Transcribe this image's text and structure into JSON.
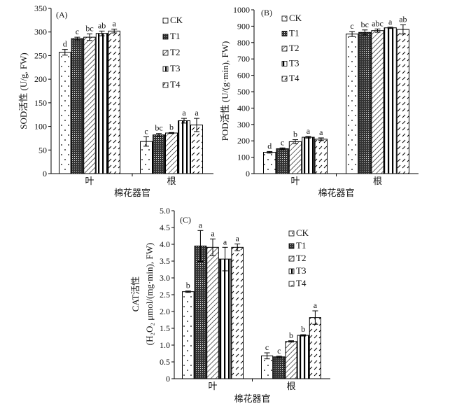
{
  "chart_data": [
    {
      "type": "bar",
      "panel_label": "(A)",
      "categories": [
        "叶",
        "根"
      ],
      "xlabel": "棉花器官",
      "ylabel": "SOD活性 (U/g, FW)",
      "ylim": [
        0,
        350
      ],
      "yticks": [
        0,
        50,
        100,
        150,
        200,
        250,
        300,
        350
      ],
      "legend_position": "top-right",
      "series": [
        {
          "name": "CK",
          "values": [
            257,
            68
          ],
          "errors": [
            6,
            10
          ],
          "letters": [
            "d",
            "c"
          ]
        },
        {
          "name": "T1",
          "values": [
            286,
            82
          ],
          "errors": [
            3,
            3
          ],
          "letters": [
            "c",
            "bc"
          ]
        },
        {
          "name": "T2",
          "values": [
            289,
            86
          ],
          "errors": [
            7,
            1
          ],
          "letters": [
            "bc",
            "b"
          ]
        },
        {
          "name": "T3",
          "values": [
            297,
            112
          ],
          "errors": [
            5,
            5
          ],
          "letters": [
            "ab",
            "a"
          ]
        },
        {
          "name": "T4",
          "values": [
            302,
            103
          ],
          "errors": [
            4,
            14
          ],
          "letters": [
            "a",
            "a"
          ]
        }
      ]
    },
    {
      "type": "bar",
      "panel_label": "(B)",
      "categories": [
        "叶",
        "根"
      ],
      "xlabel": "棉花器官",
      "ylabel": "POD活性 (U/(g·min), FW)",
      "ylim": [
        0,
        1000
      ],
      "yticks": [
        0,
        100,
        200,
        300,
        400,
        500,
        600,
        700,
        800,
        900,
        1000
      ],
      "legend_position": "top-left",
      "series": [
        {
          "name": "CK",
          "values": [
            130,
            852
          ],
          "errors": [
            5,
            15
          ],
          "letters": [
            "d",
            "c"
          ]
        },
        {
          "name": "T1",
          "values": [
            152,
            862
          ],
          "errors": [
            5,
            15
          ],
          "letters": [
            "c",
            "bc"
          ]
        },
        {
          "name": "T2",
          "values": [
            195,
            873
          ],
          "errors": [
            12,
            10
          ],
          "letters": [
            "b",
            "abc"
          ]
        },
        {
          "name": "T3",
          "values": [
            222,
            890
          ],
          "errors": [
            5,
            4
          ],
          "letters": [
            "a",
            "a"
          ]
        },
        {
          "name": "T4",
          "values": [
            210,
            880
          ],
          "errors": [
            8,
            28
          ],
          "letters": [
            "a",
            "ab"
          ]
        }
      ]
    },
    {
      "type": "bar",
      "panel_label": "(C)",
      "categories": [
        "叶",
        "根"
      ],
      "xlabel": "棉花器官",
      "ylabel": "CAT活性",
      "ylabel2": "(H₂O₂ μmol/(mg·min), FW)",
      "ylim": [
        0,
        5.0
      ],
      "yticks": [
        "0",
        "0.5",
        "1.0",
        "1.5",
        "2.0",
        "2.5",
        "3.0",
        "3.5",
        "4.0",
        "4.5",
        "5.0"
      ],
      "legend_position": "top-right",
      "series": [
        {
          "name": "CK",
          "values": [
            2.59,
            0.68
          ],
          "errors": [
            0.02,
            0.09
          ],
          "letters": [
            "b",
            "c"
          ]
        },
        {
          "name": "T1",
          "values": [
            3.95,
            0.65
          ],
          "errors": [
            0.46,
            0.02
          ],
          "letters": [
            "a",
            "c"
          ]
        },
        {
          "name": "T2",
          "values": [
            3.91,
            1.11
          ],
          "errors": [
            0.25,
            0.02
          ],
          "letters": [
            "a",
            "b"
          ]
        },
        {
          "name": "T3",
          "values": [
            3.56,
            1.29
          ],
          "errors": [
            0.35,
            0.02
          ],
          "letters": [
            "a",
            "b"
          ]
        },
        {
          "name": "T4",
          "values": [
            3.91,
            1.82
          ],
          "errors": [
            0.1,
            0.2
          ],
          "letters": [
            "a",
            "a"
          ]
        }
      ]
    }
  ]
}
